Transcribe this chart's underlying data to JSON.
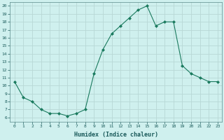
{
  "x": [
    0,
    1,
    2,
    3,
    4,
    5,
    6,
    7,
    8,
    9,
    10,
    11,
    12,
    13,
    14,
    15,
    16,
    17,
    18,
    19,
    20,
    21,
    22,
    23
  ],
  "y": [
    10.5,
    8.5,
    8.0,
    7.0,
    6.5,
    6.5,
    6.2,
    6.5,
    7.0,
    11.5,
    14.5,
    16.5,
    17.5,
    18.5,
    19.5,
    20.0,
    17.5,
    18.0,
    18.0,
    12.5,
    11.5,
    11.0,
    10.5,
    10.5
  ],
  "line_color": "#1a7a5e",
  "marker": "D",
  "markersize": 2.0,
  "bg_color": "#cff0ee",
  "grid_color": "#b8d8d5",
  "xlabel": "Humidex (Indice chaleur)",
  "ylabel_ticks": [
    6,
    7,
    8,
    9,
    10,
    11,
    12,
    13,
    14,
    15,
    16,
    17,
    18,
    19,
    20
  ],
  "xlim": [
    -0.5,
    23.5
  ],
  "ylim": [
    5.5,
    20.5
  ]
}
